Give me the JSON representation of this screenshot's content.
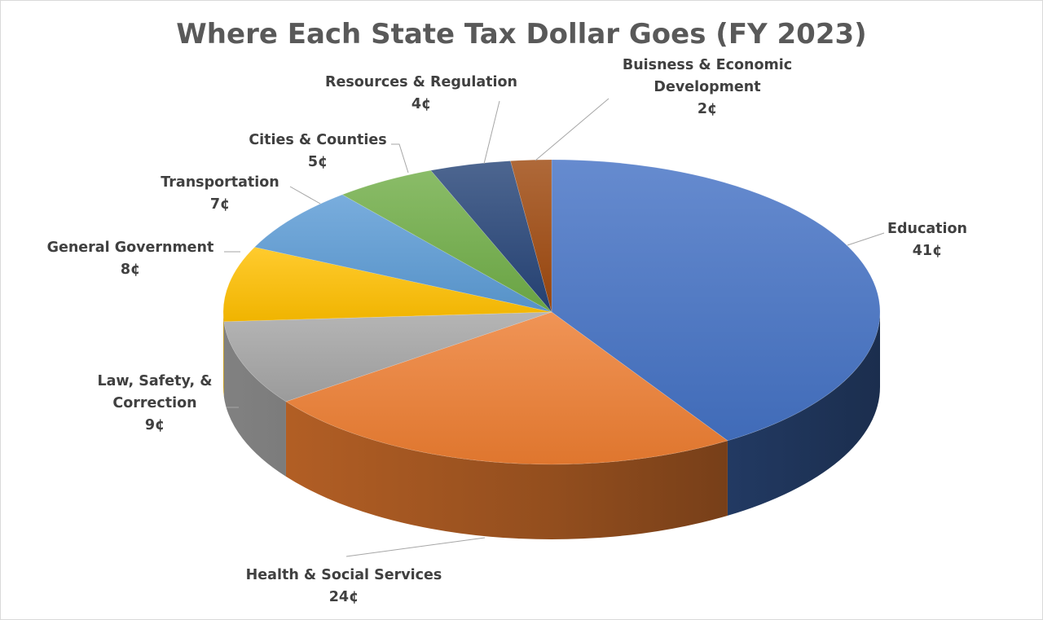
{
  "chart_data": {
    "type": "pie",
    "title": "Where Each State Tax Dollar Goes (FY 2023)",
    "slices": [
      {
        "label": "Education",
        "value": 41,
        "value_label": "41¢",
        "color": "#4472c4"
      },
      {
        "label": "Health & Social Services",
        "value": 24,
        "value_label": "24¢",
        "color": "#ed7d31"
      },
      {
        "label": "Law, Safety, & Correction",
        "value": 9,
        "value_label": "9¢",
        "color": "#a5a5a5"
      },
      {
        "label": "General Government",
        "value": 8,
        "value_label": "8¢",
        "color": "#ffc000"
      },
      {
        "label": "Transportation",
        "value": 7,
        "value_label": "7¢",
        "color": "#5b9bd5"
      },
      {
        "label": "Cities & Counties",
        "value": 5,
        "value_label": "5¢",
        "color": "#70ad47"
      },
      {
        "label": "Resources & Regulation",
        "value": 4,
        "value_label": "4¢",
        "color": "#264478"
      },
      {
        "label": "Buisness & Economic Development",
        "value": 2,
        "value_label": "2¢",
        "color": "#9e480e"
      }
    ],
    "legend": "none",
    "style": "3d-pie"
  }
}
